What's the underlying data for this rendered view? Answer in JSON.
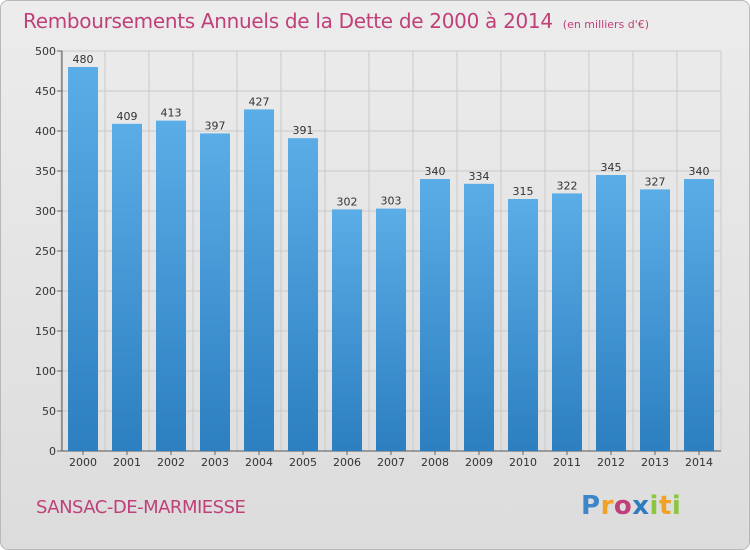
{
  "header": {
    "title": "Remboursements Annuels de la Dette de 2000 à 2014",
    "unit": "(en milliers d'€)"
  },
  "footer": {
    "commune": "SANSAC-DE-MARMIESSE",
    "logo": "Proxiti"
  },
  "colors": {
    "title": "#c0407a",
    "bar_top": "#5aade6",
    "bar_bottom": "#2c7fc0",
    "grid": "#c9c9c9"
  },
  "chart_data": {
    "type": "bar",
    "title": "Remboursements Annuels de la Dette de 2000 à 2014",
    "xlabel": "",
    "ylabel": "en milliers d'€",
    "categories": [
      "2000",
      "2001",
      "2002",
      "2003",
      "2004",
      "2005",
      "2006",
      "2007",
      "2008",
      "2009",
      "2010",
      "2011",
      "2012",
      "2013",
      "2014"
    ],
    "values": [
      480,
      409,
      413,
      397,
      427,
      391,
      302,
      303,
      340,
      334,
      315,
      322,
      345,
      327,
      340
    ],
    "ylim": [
      0,
      500
    ],
    "yticks": [
      0,
      50,
      100,
      150,
      200,
      250,
      300,
      350,
      400,
      450,
      500
    ],
    "grid": true
  }
}
